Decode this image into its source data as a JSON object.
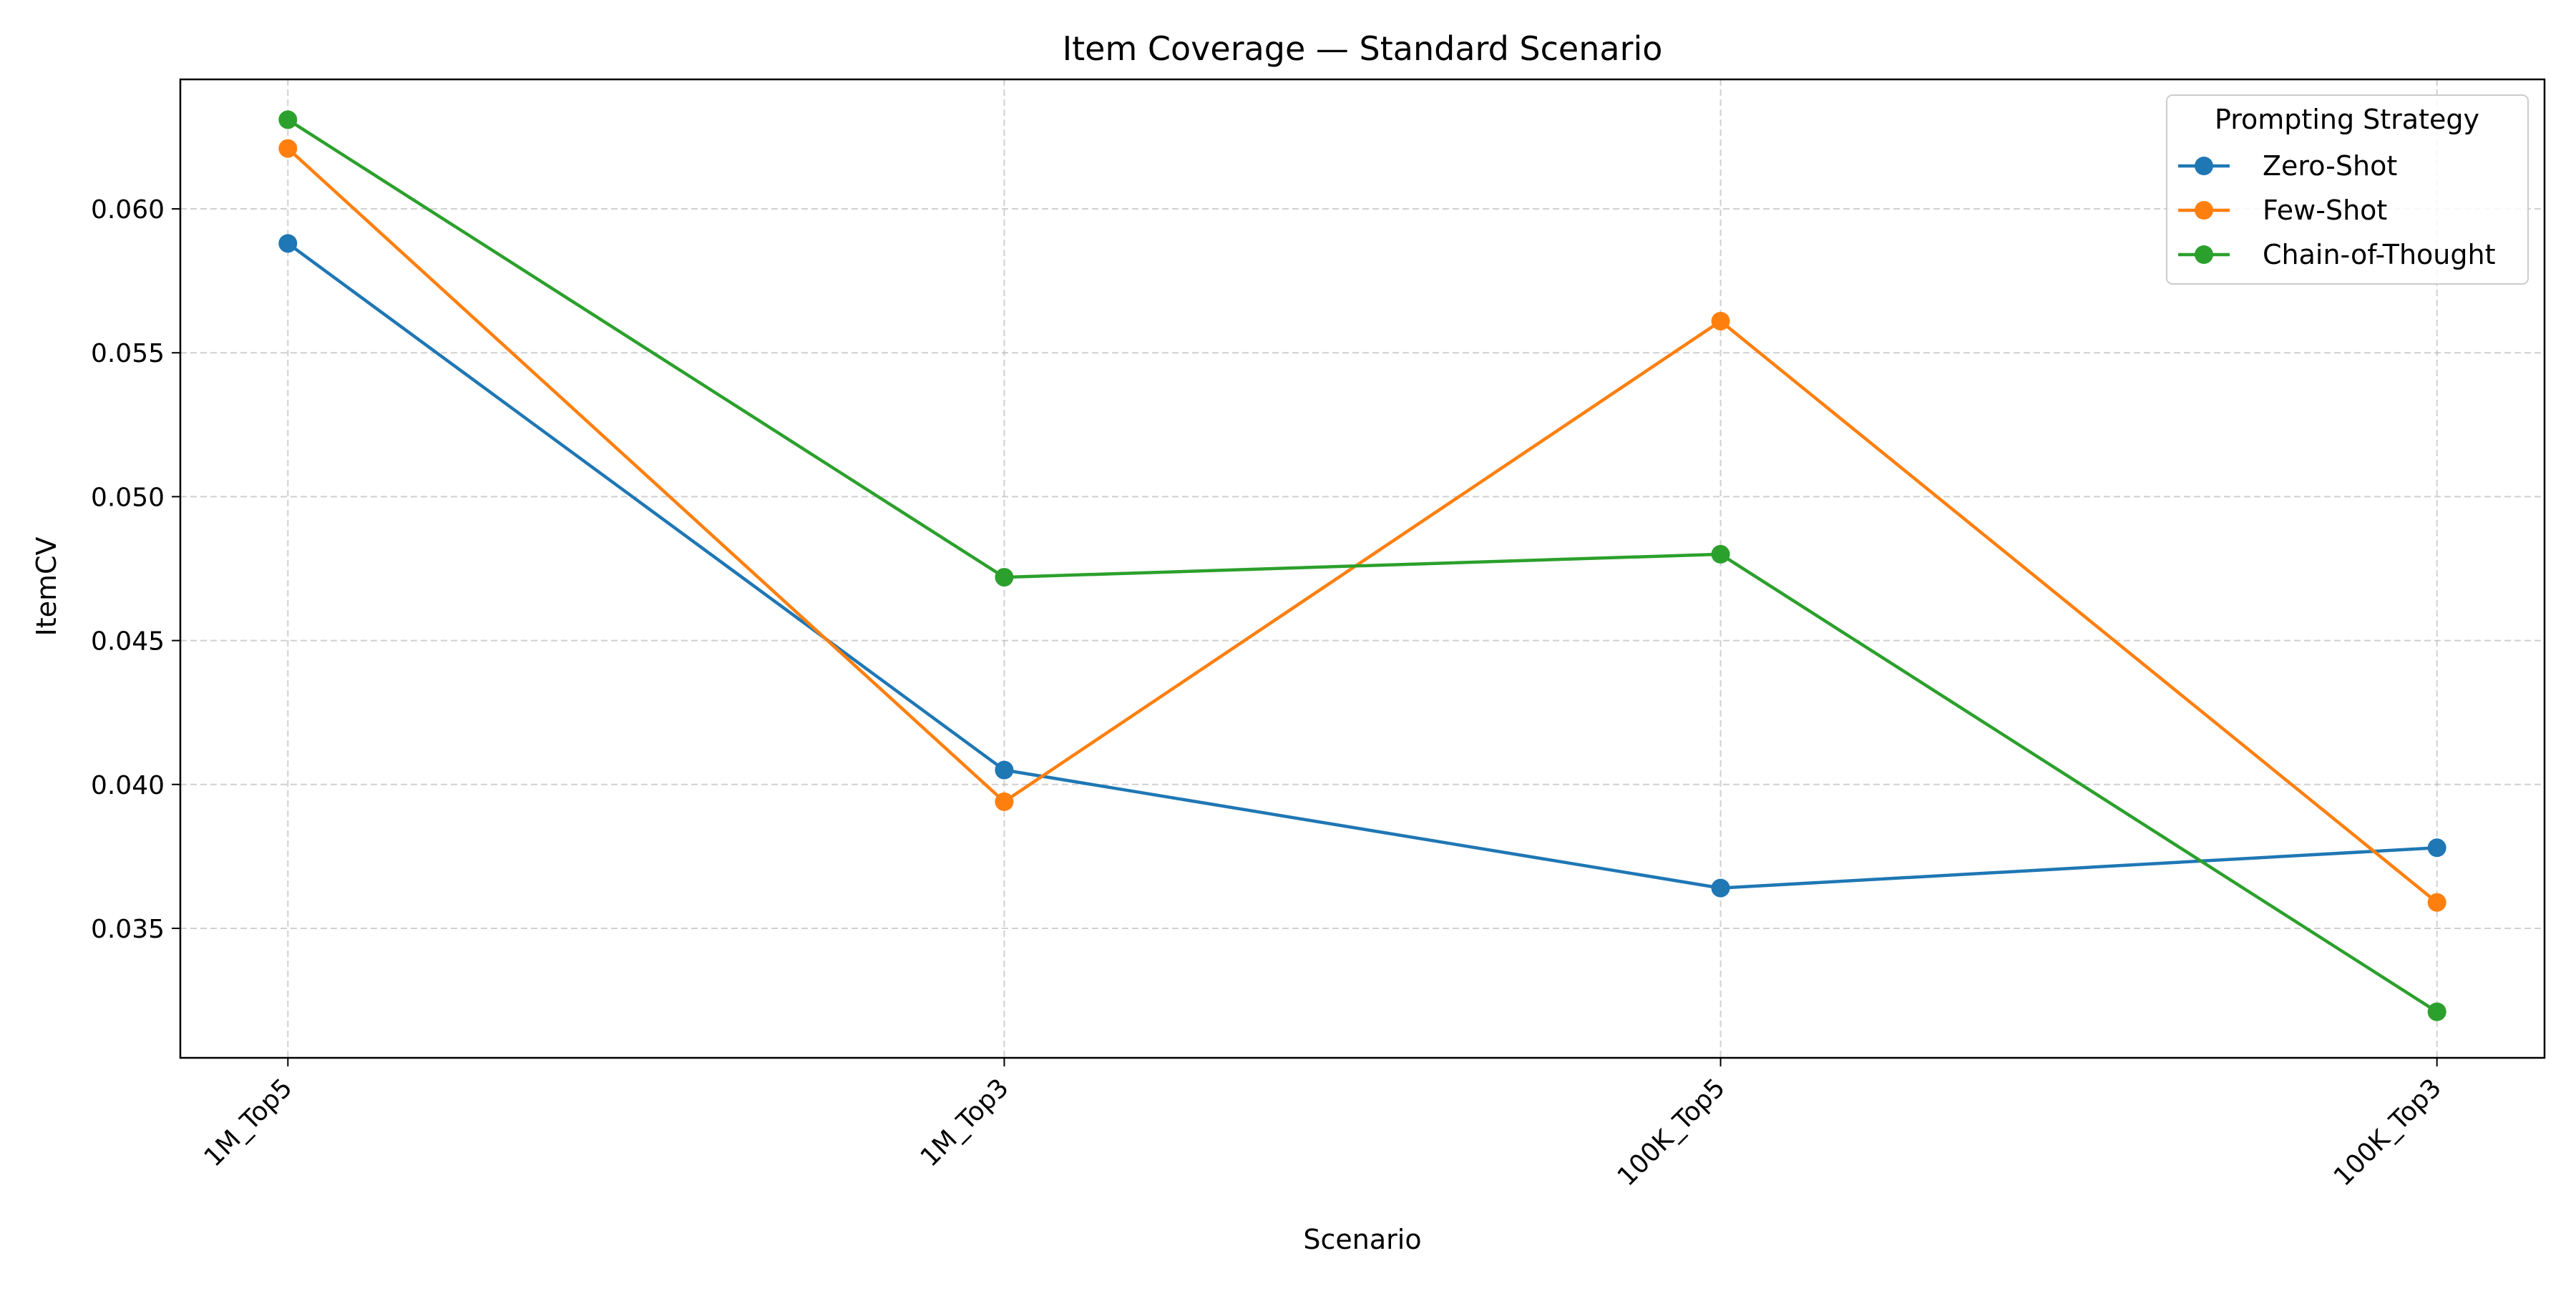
{
  "chart_data": {
    "type": "line",
    "title": "Item Coverage — Standard Scenario",
    "xlabel": "Scenario",
    "ylabel": "ItemCV",
    "categories": [
      "1M_Top5",
      "1M_Top3",
      "100K_Top5",
      "100K_Top3"
    ],
    "ylim": [
      0.0305,
      0.0645
    ],
    "yticks": [
      0.035,
      0.04,
      0.045,
      0.05,
      0.055,
      0.06
    ],
    "ytick_labels": [
      "0.035",
      "0.040",
      "0.045",
      "0.050",
      "0.055",
      "0.060"
    ],
    "grid": true,
    "legend": {
      "title": "Prompting Strategy",
      "placement": "top-right"
    },
    "series": [
      {
        "name": "Zero-Shot",
        "color": "#1f77b4",
        "values": [
          0.0588,
          0.0405,
          0.0364,
          0.0378
        ]
      },
      {
        "name": "Few-Shot",
        "color": "#ff7f0e",
        "values": [
          0.0621,
          0.0394,
          0.0561,
          0.0359
        ]
      },
      {
        "name": "Chain-of-Thought",
        "color": "#2ca02c",
        "values": [
          0.0631,
          0.0472,
          0.048,
          0.0321
        ]
      }
    ]
  }
}
